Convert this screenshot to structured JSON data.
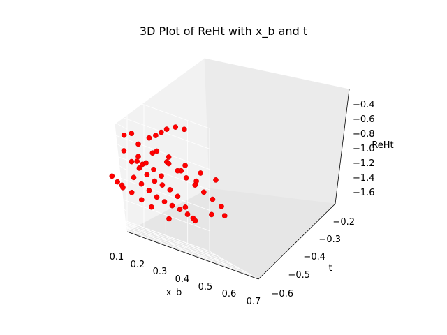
{
  "chart_data": {
    "type": "scatter",
    "title": "3D Plot of ReHt with x_b and t",
    "xlabel": "x_b",
    "ylabel": "t",
    "zlabel": "ReHt",
    "xlim": [
      0.1,
      0.7
    ],
    "ylim": [
      -0.62,
      -0.17
    ],
    "zlim": [
      -1.72,
      -0.33
    ],
    "x_ticks": [
      "0.1",
      "0.2",
      "0.3",
      "0.4",
      "0.5",
      "0.6",
      "0.7"
    ],
    "y_ticks": [
      "−0.6",
      "−0.5",
      "−0.4",
      "−0.3",
      "−0.2"
    ],
    "z_ticks": [
      "−1.6",
      "−1.4",
      "−1.2",
      "−1.0",
      "−0.8",
      "−0.6",
      "−0.4"
    ],
    "grid": true,
    "marker_color": "#ff0000",
    "points": [
      [
        0.14,
        -0.21,
        -0.6
      ],
      [
        0.18,
        -0.24,
        -0.9
      ],
      [
        0.22,
        -0.27,
        -0.92
      ],
      [
        0.26,
        -0.29,
        -0.6
      ],
      [
        0.3,
        -0.31,
        -0.55
      ],
      [
        0.34,
        -0.34,
        -0.5
      ],
      [
        0.38,
        -0.37,
        -0.45
      ],
      [
        0.44,
        -0.41,
        -0.4
      ],
      [
        0.5,
        -0.45,
        -0.4
      ],
      [
        0.15,
        -0.3,
        -0.85
      ],
      [
        0.2,
        -0.33,
        -0.95
      ],
      [
        0.25,
        -0.36,
        -1.0
      ],
      [
        0.3,
        -0.39,
        -1.05
      ],
      [
        0.35,
        -0.42,
        -1.1
      ],
      [
        0.4,
        -0.45,
        -1.12
      ],
      [
        0.45,
        -0.48,
        -1.15
      ],
      [
        0.5,
        -0.51,
        -1.2
      ],
      [
        0.55,
        -0.54,
        -1.3
      ],
      [
        0.6,
        -0.57,
        -1.4
      ],
      [
        0.17,
        -0.25,
        -1.1
      ],
      [
        0.22,
        -0.28,
        -1.15
      ],
      [
        0.27,
        -0.31,
        -1.2
      ],
      [
        0.32,
        -0.34,
        -1.25
      ],
      [
        0.37,
        -0.37,
        -1.28
      ],
      [
        0.42,
        -0.4,
        -1.3
      ],
      [
        0.47,
        -0.43,
        -1.32
      ],
      [
        0.52,
        -0.46,
        -1.35
      ],
      [
        0.57,
        -0.49,
        -1.4
      ],
      [
        0.24,
        -0.5,
        -1.3
      ],
      [
        0.3,
        -0.53,
        -1.35
      ],
      [
        0.36,
        -0.56,
        -1.4
      ],
      [
        0.42,
        -0.59,
        -1.45
      ],
      [
        0.48,
        -0.55,
        -1.5
      ],
      [
        0.2,
        -0.4,
        -0.7
      ],
      [
        0.28,
        -0.43,
        -0.75
      ],
      [
        0.36,
        -0.46,
        -0.8
      ],
      [
        0.44,
        -0.49,
        -0.85
      ],
      [
        0.52,
        -0.52,
        -0.9
      ],
      [
        0.58,
        -0.5,
        -0.95
      ],
      [
        0.33,
        -0.25,
        -0.8
      ],
      [
        0.38,
        -0.27,
        -0.85
      ],
      [
        0.43,
        -0.29,
        -0.9
      ],
      [
        0.48,
        -0.31,
        -0.95
      ],
      [
        0.53,
        -0.33,
        -1.0
      ],
      [
        0.58,
        -0.35,
        -1.05
      ],
      [
        0.63,
        -0.37,
        -1.1
      ],
      [
        0.3,
        -0.47,
        -0.9
      ],
      [
        0.35,
        -0.5,
        -0.95
      ],
      [
        0.4,
        -0.53,
        -1.0
      ],
      [
        0.45,
        -0.56,
        -1.05
      ],
      [
        0.26,
        -0.22,
        -0.7
      ],
      [
        0.32,
        -0.23,
        -0.72
      ],
      [
        0.4,
        -0.24,
        -0.75
      ],
      [
        0.48,
        -0.26,
        -0.78
      ],
      [
        0.56,
        -0.28,
        -0.8
      ],
      [
        0.12,
        -0.35,
        -1.2
      ],
      [
        0.16,
        -0.38,
        -1.25
      ],
      [
        0.2,
        -0.41,
        -1.3
      ],
      [
        0.62,
        -0.44,
        -1.25
      ],
      [
        0.66,
        -0.4,
        -1.2
      ]
    ]
  }
}
